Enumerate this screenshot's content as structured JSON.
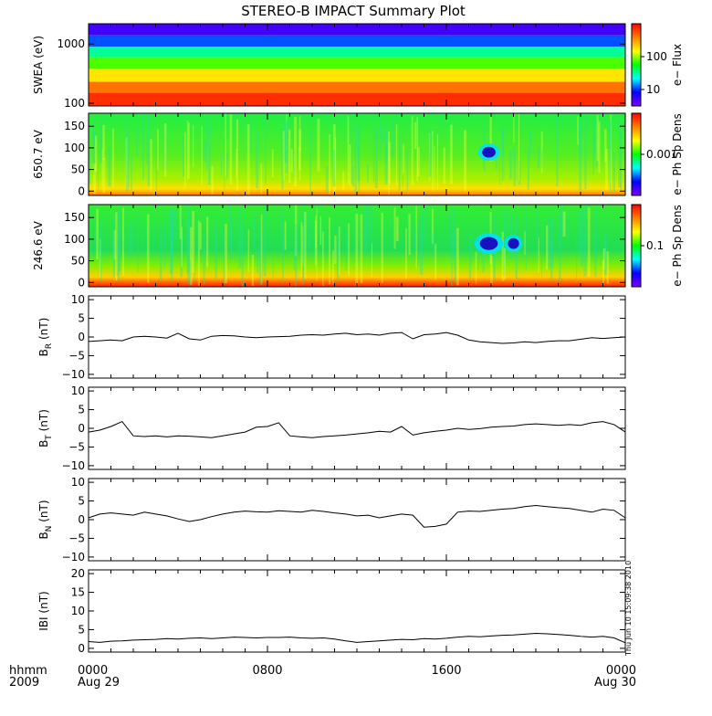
{
  "title": "STEREO-B IMPACT Summary Plot",
  "colors": {
    "colorbar": [
      "#ff0000",
      "#ff8000",
      "#ffff00",
      "#00ff00",
      "#00ffff",
      "#0000ff",
      "#8000ff"
    ]
  },
  "time_axis": {
    "row_label_1": "hhmm",
    "row_label_2": "2009",
    "ticks": [
      {
        "label": "0000",
        "sub": "Aug 29",
        "hour": 0
      },
      {
        "label": "0800",
        "sub": "",
        "hour": 8
      },
      {
        "label": "1600",
        "sub": "",
        "hour": 16
      },
      {
        "label": "0000",
        "sub": "Aug 30",
        "hour": 24
      }
    ]
  },
  "stamp": "Thu Jun 10 15:09:38 2010",
  "chart_data": [
    {
      "type": "heatmap",
      "ylabel": "SWEA (eV)",
      "yscale": "log",
      "ylim": [
        90,
        2200
      ],
      "yticks": [
        {
          "v": 100,
          "label": "100"
        },
        {
          "v": 1000,
          "label": "1000"
        }
      ],
      "colorbar_label": "e− Flux",
      "colorbar_ticks": [
        {
          "frac": 0.2,
          "label": "10"
        },
        {
          "frac": 0.6,
          "label": "100"
        }
      ],
      "description_bands": [
        {
          "y_top": 2200,
          "y_bottom": 1400,
          "level": 0.92
        },
        {
          "y_top": 1400,
          "y_bottom": 900,
          "level": 0.78
        },
        {
          "y_top": 900,
          "y_bottom": 600,
          "level": 0.6
        },
        {
          "y_top": 600,
          "y_bottom": 380,
          "level": 0.45
        },
        {
          "y_top": 380,
          "y_bottom": 230,
          "level": 0.3
        },
        {
          "y_top": 230,
          "y_bottom": 150,
          "level": 0.15
        },
        {
          "y_top": 150,
          "y_bottom": 90,
          "level": 0.06
        }
      ]
    },
    {
      "type": "heatmap",
      "ylabel": "650.7 eV",
      "ylim": [
        -10,
        180
      ],
      "yticks": [
        {
          "v": 0,
          "label": "0"
        },
        {
          "v": 50,
          "label": "50"
        },
        {
          "v": 100,
          "label": "100"
        },
        {
          "v": 150,
          "label": "150"
        }
      ],
      "colorbar_label": "e− Ph Sp Dens",
      "colorbar_ticks": [
        {
          "frac": 0.5,
          "label": "0.001"
        }
      ],
      "dropouts": [
        {
          "hour": 17.9,
          "pitch": 90,
          "w_hours": 0.6,
          "h_deg": 25
        }
      ]
    },
    {
      "type": "heatmap",
      "ylabel": "246.6 eV",
      "ylim": [
        -10,
        180
      ],
      "yticks": [
        {
          "v": 0,
          "label": "0"
        },
        {
          "v": 50,
          "label": "50"
        },
        {
          "v": 100,
          "label": "100"
        },
        {
          "v": 150,
          "label": "150"
        }
      ],
      "colorbar_label": "e− Ph Sp Dens",
      "colorbar_ticks": [
        {
          "frac": 0.5,
          "label": "0.1"
        }
      ],
      "dropouts": [
        {
          "hour": 17.9,
          "pitch": 90,
          "w_hours": 0.8,
          "h_deg": 30
        },
        {
          "hour": 19.0,
          "pitch": 90,
          "w_hours": 0.5,
          "h_deg": 25
        }
      ]
    },
    {
      "type": "line",
      "ylabel": "B",
      "ylabel_sub": "R",
      "ylabel_unit": " (nT)",
      "ylim": [
        -11,
        11
      ],
      "yticks": [
        {
          "v": -10,
          "label": "−10"
        },
        {
          "v": -5,
          "label": "−5"
        },
        {
          "v": 0,
          "label": "0"
        },
        {
          "v": 5,
          "label": "5"
        },
        {
          "v": 10,
          "label": "10"
        }
      ],
      "x": [
        0,
        0.5,
        1,
        1.5,
        2,
        2.5,
        3,
        3.5,
        4,
        4.5,
        5,
        5.5,
        6,
        6.5,
        7,
        7.5,
        8,
        8.5,
        9,
        9.5,
        10,
        10.5,
        11,
        11.5,
        12,
        12.5,
        13,
        13.5,
        14,
        14.5,
        15,
        15.5,
        16,
        16.5,
        17,
        17.5,
        18,
        18.5,
        19,
        19.5,
        20,
        20.5,
        21,
        21.5,
        22,
        22.5,
        23,
        23.5,
        24
      ],
      "y": [
        -1.2,
        -1.0,
        -0.8,
        -1.0,
        0.0,
        0.2,
        0.0,
        -0.3,
        1.0,
        -0.5,
        -0.8,
        0.2,
        0.4,
        0.3,
        0.0,
        -0.2,
        0.0,
        0.1,
        0.2,
        0.5,
        0.6,
        0.5,
        0.8,
        1.0,
        0.6,
        0.8,
        0.5,
        1.0,
        1.2,
        -0.5,
        0.6,
        0.8,
        1.2,
        0.5,
        -0.8,
        -1.3,
        -1.5,
        -1.7,
        -1.6,
        -1.3,
        -1.5,
        -1.2,
        -1.0,
        -1.0,
        -0.6,
        -0.2,
        -0.4,
        -0.2,
        0.0
      ]
    },
    {
      "type": "line",
      "ylabel": "B",
      "ylabel_sub": "T",
      "ylabel_unit": " (nT)",
      "ylim": [
        -11,
        11
      ],
      "yticks": [
        {
          "v": -10,
          "label": "−10"
        },
        {
          "v": -5,
          "label": "−5"
        },
        {
          "v": 0,
          "label": "0"
        },
        {
          "v": 5,
          "label": "5"
        },
        {
          "v": 10,
          "label": "10"
        }
      ],
      "x": [
        0,
        0.5,
        1,
        1.5,
        2,
        2.5,
        3,
        3.5,
        4,
        4.5,
        5,
        5.5,
        6,
        6.5,
        7,
        7.5,
        8,
        8.5,
        9,
        9.5,
        10,
        10.5,
        11,
        11.5,
        12,
        12.5,
        13,
        13.5,
        14,
        14.5,
        15,
        15.5,
        16,
        16.5,
        17,
        17.5,
        18,
        18.5,
        19,
        19.5,
        20,
        20.5,
        21,
        21.5,
        22,
        22.5,
        23,
        23.5,
        24
      ],
      "y": [
        -1.0,
        -0.5,
        0.5,
        1.8,
        -2.0,
        -2.2,
        -2.0,
        -2.3,
        -2.0,
        -2.1,
        -2.3,
        -2.5,
        -2.0,
        -1.5,
        -1.0,
        0.3,
        0.5,
        1.5,
        -2.0,
        -2.3,
        -2.5,
        -2.2,
        -2.0,
        -1.8,
        -1.5,
        -1.2,
        -0.8,
        -1.0,
        0.5,
        -1.8,
        -1.2,
        -0.8,
        -0.5,
        0.0,
        -0.3,
        -0.1,
        0.3,
        0.5,
        0.6,
        1.0,
        1.2,
        1.0,
        0.8,
        1.0,
        0.8,
        1.5,
        1.8,
        1.0,
        -1.0
      ]
    },
    {
      "type": "line",
      "ylabel": "B",
      "ylabel_sub": "N",
      "ylabel_unit": " (nT)",
      "ylim": [
        -11,
        11
      ],
      "yticks": [
        {
          "v": -10,
          "label": "−10"
        },
        {
          "v": -5,
          "label": "−5"
        },
        {
          "v": 0,
          "label": "0"
        },
        {
          "v": 5,
          "label": "5"
        },
        {
          "v": 10,
          "label": "10"
        }
      ],
      "x": [
        0,
        0.5,
        1,
        1.5,
        2,
        2.5,
        3,
        3.5,
        4,
        4.5,
        5,
        5.5,
        6,
        6.5,
        7,
        7.5,
        8,
        8.5,
        9,
        9.5,
        10,
        10.5,
        11,
        11.5,
        12,
        12.5,
        13,
        13.5,
        14,
        14.5,
        15,
        15.5,
        16,
        16.5,
        17,
        17.5,
        18,
        18.5,
        19,
        19.5,
        20,
        20.5,
        21,
        21.5,
        22,
        22.5,
        23,
        23.5,
        24
      ],
      "y": [
        0.5,
        1.5,
        1.8,
        1.5,
        1.2,
        2.0,
        1.5,
        1.0,
        0.2,
        -0.5,
        0.0,
        0.8,
        1.5,
        2.0,
        2.3,
        2.1,
        2.0,
        2.4,
        2.2,
        2.0,
        2.5,
        2.2,
        1.8,
        1.5,
        1.0,
        1.2,
        0.5,
        1.0,
        1.5,
        1.2,
        -2.0,
        -1.8,
        -1.2,
        2.0,
        2.3,
        2.2,
        2.5,
        2.8,
        3.0,
        3.5,
        3.8,
        3.5,
        3.2,
        3.0,
        2.5,
        2.0,
        2.8,
        2.5,
        0.5
      ]
    },
    {
      "type": "line",
      "ylabel": "IBI",
      "ylabel_sub": "",
      "ylabel_unit": " (nT)",
      "ylim": [
        -1,
        21
      ],
      "yticks": [
        {
          "v": 0,
          "label": "0"
        },
        {
          "v": 5,
          "label": "5"
        },
        {
          "v": 10,
          "label": "10"
        },
        {
          "v": 15,
          "label": "15"
        },
        {
          "v": 20,
          "label": "20"
        }
      ],
      "x": [
        0,
        0.5,
        1,
        1.5,
        2,
        2.5,
        3,
        3.5,
        4,
        4.5,
        5,
        5.5,
        6,
        6.5,
        7,
        7.5,
        8,
        8.5,
        9,
        9.5,
        10,
        10.5,
        11,
        11.5,
        12,
        12.5,
        13,
        13.5,
        14,
        14.5,
        15,
        15.5,
        16,
        16.5,
        17,
        17.5,
        18,
        18.5,
        19,
        19.5,
        20,
        20.5,
        21,
        21.5,
        22,
        22.5,
        23,
        23.5,
        24
      ],
      "y": [
        1.8,
        1.6,
        1.9,
        2.0,
        2.2,
        2.3,
        2.4,
        2.6,
        2.5,
        2.7,
        2.8,
        2.6,
        2.8,
        3.0,
        2.9,
        2.8,
        2.9,
        2.9,
        3.0,
        2.8,
        2.7,
        2.8,
        2.5,
        2.0,
        1.6,
        1.8,
        2.0,
        2.2,
        2.4,
        2.3,
        2.6,
        2.5,
        2.7,
        3.0,
        3.2,
        3.1,
        3.3,
        3.5,
        3.6,
        3.8,
        4.0,
        3.9,
        3.7,
        3.5,
        3.2,
        3.0,
        3.2,
        2.8,
        1.5
      ]
    }
  ]
}
